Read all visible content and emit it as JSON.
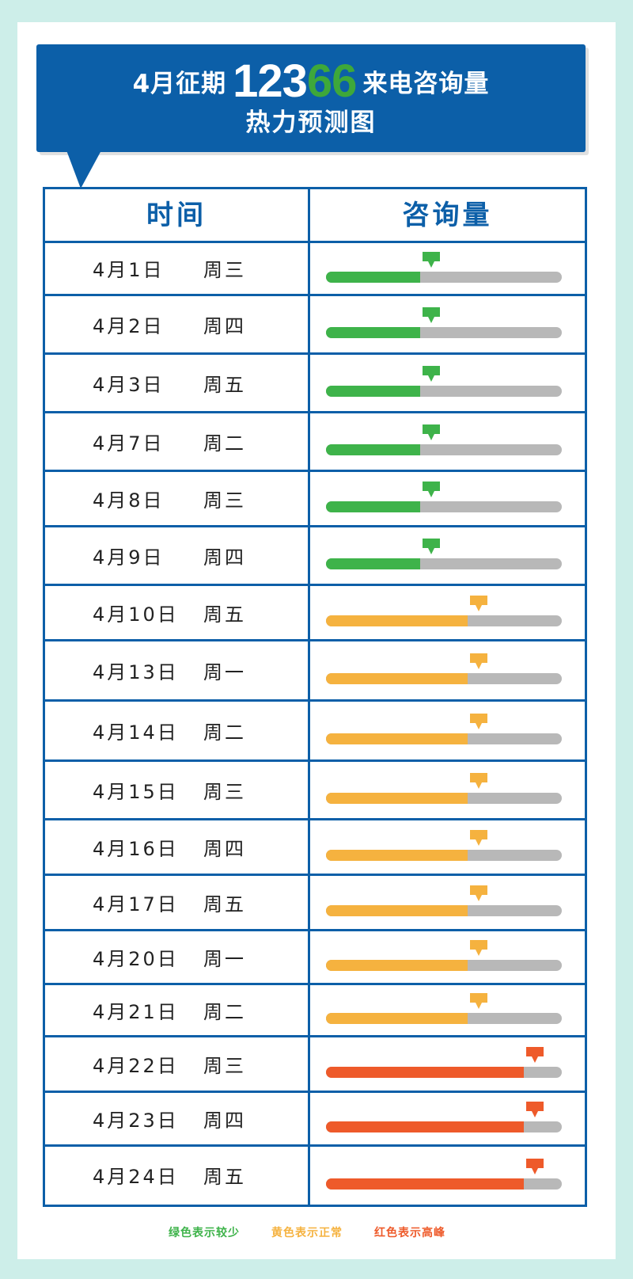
{
  "title": {
    "prefix": "4月征期",
    "number_white": "123",
    "number_green": "66",
    "suffix": "来电咨询量",
    "line2": "热力预测图"
  },
  "table": {
    "col_time": "时间",
    "col_volume": "咨询量"
  },
  "colors": {
    "low": "#3eb34a",
    "normal": "#f5b23f",
    "peak": "#ee5a2a",
    "track": "#b8b8b8",
    "brand": "#0c5fa8"
  },
  "chart_data": {
    "type": "bar",
    "scale": "relative consultation volume (0-1)",
    "rows": [
      {
        "date": "4月1日",
        "weekday": "周三",
        "level": "low",
        "value": 0.4
      },
      {
        "date": "4月2日",
        "weekday": "周四",
        "level": "low",
        "value": 0.4
      },
      {
        "date": "4月3日",
        "weekday": "周五",
        "level": "low",
        "value": 0.4
      },
      {
        "date": "4月7日",
        "weekday": "周二",
        "level": "low",
        "value": 0.4
      },
      {
        "date": "4月8日",
        "weekday": "周三",
        "level": "low",
        "value": 0.4
      },
      {
        "date": "4月9日",
        "weekday": "周四",
        "level": "low",
        "value": 0.4
      },
      {
        "date": "4月10日",
        "weekday": "周五",
        "level": "normal",
        "value": 0.6
      },
      {
        "date": "4月13日",
        "weekday": "周一",
        "level": "normal",
        "value": 0.6
      },
      {
        "date": "4月14日",
        "weekday": "周二",
        "level": "normal",
        "value": 0.6
      },
      {
        "date": "4月15日",
        "weekday": "周三",
        "level": "normal",
        "value": 0.6
      },
      {
        "date": "4月16日",
        "weekday": "周四",
        "level": "normal",
        "value": 0.6
      },
      {
        "date": "4月17日",
        "weekday": "周五",
        "level": "normal",
        "value": 0.6
      },
      {
        "date": "4月20日",
        "weekday": "周一",
        "level": "normal",
        "value": 0.6
      },
      {
        "date": "4月21日",
        "weekday": "周二",
        "level": "normal",
        "value": 0.6
      },
      {
        "date": "4月22日",
        "weekday": "周三",
        "level": "peak",
        "value": 0.84
      },
      {
        "date": "4月23日",
        "weekday": "周四",
        "level": "peak",
        "value": 0.84
      },
      {
        "date": "4月24日",
        "weekday": "周五",
        "level": "peak",
        "value": 0.84
      }
    ],
    "legend": [
      {
        "label": "绿色表示较少",
        "level": "low"
      },
      {
        "label": "黄色表示正常",
        "level": "normal"
      },
      {
        "label": "红色表示高峰",
        "level": "peak"
      }
    ]
  }
}
